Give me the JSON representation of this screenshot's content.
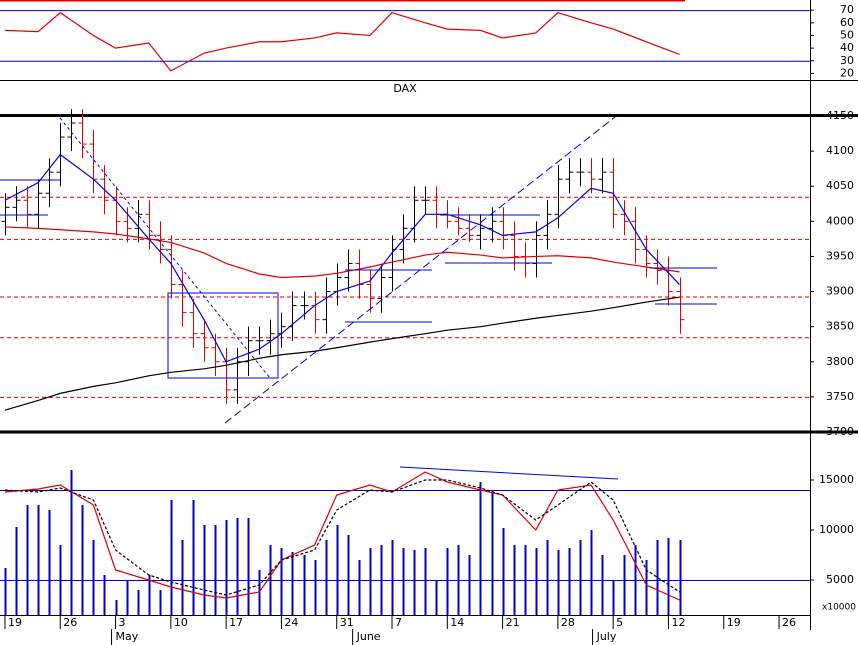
{
  "chart_data": [
    {
      "type": "line",
      "xlim": [
        -0.45,
        72.8
      ],
      "ylim": [
        14,
        78
      ],
      "yticks": [
        20,
        30,
        40,
        50,
        60,
        70
      ],
      "bands": [
        30,
        70
      ],
      "band_color": "#0000cc",
      "series": [
        {
          "color": "#e00000",
          "x": [
            0,
            3,
            5,
            8,
            10,
            13,
            15,
            18,
            20,
            23,
            25,
            28,
            30,
            33,
            35,
            38,
            40,
            43,
            45,
            48,
            50,
            53,
            55,
            58,
            61
          ],
          "values": [
            54,
            53,
            68,
            50,
            40,
            44,
            22,
            36,
            40,
            45,
            45,
            48,
            52,
            50,
            68,
            60,
            55,
            54,
            48,
            52,
            68,
            60,
            55,
            45,
            35
          ]
        }
      ]
    },
    {
      "type": "ohlc",
      "title": "DAX",
      "xlim": [
        -0.45,
        72.8
      ],
      "ylim": [
        3700,
        4150
      ],
      "yticks": [
        3700,
        3750,
        3800,
        3850,
        3900,
        3950,
        4000,
        4050,
        4100,
        4150
      ],
      "hlines": [
        4035,
        3975,
        3893,
        3835,
        3750
      ],
      "hline_color": "#e00000",
      "up_color": "#000000",
      "down_color": "#e00000",
      "open": [
        4000,
        4020,
        4030,
        4010,
        4040,
        4070,
        4120,
        4140,
        4110,
        4060,
        4030,
        4000,
        3990,
        4010,
        3980,
        3960,
        3910,
        3870,
        3840,
        3820,
        3800,
        3760,
        3800,
        3830,
        3830,
        3840,
        3850,
        3880,
        3880,
        3860,
        3900,
        3920,
        3940,
        3910,
        3890,
        3920,
        3960,
        3990,
        4030,
        4030,
        4010,
        4000,
        3990,
        3980,
        3990,
        4000,
        3980,
        3950,
        3940,
        3980,
        4010,
        4060,
        4070,
        4070,
        4060,
        4070,
        4010,
        4000,
        3960,
        3940,
        3930,
        3900
      ],
      "high": [
        4040,
        4050,
        4050,
        4060,
        4090,
        4140,
        4160,
        4160,
        4130,
        4080,
        4050,
        4020,
        4030,
        4030,
        4000,
        3980,
        3930,
        3890,
        3860,
        3840,
        3820,
        3820,
        3850,
        3850,
        3860,
        3870,
        3900,
        3900,
        3900,
        3920,
        3940,
        3960,
        3960,
        3930,
        3940,
        3980,
        4010,
        4050,
        4050,
        4050,
        4030,
        4020,
        4010,
        4010,
        4020,
        4020,
        4000,
        3970,
        4000,
        4030,
        4080,
        4090,
        4090,
        4090,
        4090,
        4090,
        4030,
        4020,
        3980,
        3960,
        3950,
        3920
      ],
      "low": [
        3980,
        4000,
        3990,
        3990,
        4020,
        4050,
        4100,
        4090,
        4040,
        4010,
        3980,
        3970,
        3970,
        3960,
        3940,
        3890,
        3850,
        3820,
        3800,
        3780,
        3740,
        3740,
        3780,
        3810,
        3810,
        3820,
        3830,
        3860,
        3840,
        3840,
        3880,
        3900,
        3890,
        3870,
        3870,
        3900,
        3940,
        3970,
        4010,
        3990,
        3990,
        3980,
        3970,
        3960,
        3970,
        3960,
        3930,
        3920,
        3920,
        3960,
        3990,
        4040,
        4050,
        4040,
        4040,
        3990,
        3980,
        3940,
        3920,
        3910,
        3880,
        3840
      ],
      "close": [
        4020,
        4030,
        4010,
        4040,
        4070,
        4120,
        4140,
        4110,
        4060,
        4030,
        4000,
        3990,
        4010,
        3980,
        3960,
        3910,
        3870,
        3840,
        3820,
        3800,
        3760,
        3800,
        3830,
        3830,
        3840,
        3850,
        3880,
        3880,
        3860,
        3900,
        3920,
        3940,
        3910,
        3890,
        3920,
        3960,
        3990,
        4030,
        4030,
        4010,
        4000,
        3990,
        3980,
        3990,
        4000,
        3980,
        3950,
        3940,
        3980,
        4010,
        4060,
        4070,
        4070,
        4060,
        4070,
        4010,
        4000,
        3960,
        3940,
        3930,
        3900,
        3860
      ],
      "series": [
        {
          "color": "#0000ee",
          "x": [
            0,
            3,
            5,
            8,
            10,
            13,
            15,
            18,
            20,
            23,
            25,
            28,
            30,
            33,
            35,
            38,
            40,
            43,
            45,
            48,
            50,
            53,
            55,
            58,
            61
          ],
          "values": [
            4030,
            4055,
            4095,
            4060,
            4030,
            3975,
            3940,
            3860,
            3800,
            3818,
            3840,
            3880,
            3900,
            3915,
            3955,
            4010,
            4010,
            3995,
            3980,
            3985,
            4005,
            4047,
            4040,
            3960,
            3910
          ]
        },
        {
          "color": "#e00000",
          "x": [
            0,
            3,
            5,
            8,
            10,
            13,
            15,
            18,
            20,
            23,
            25,
            28,
            30,
            33,
            35,
            38,
            40,
            43,
            45,
            48,
            50,
            53,
            55,
            58,
            61
          ],
          "values": [
            3992,
            3990,
            3988,
            3985,
            3982,
            3975,
            3970,
            3955,
            3940,
            3925,
            3920,
            3922,
            3926,
            3935,
            3942,
            3952,
            3956,
            3952,
            3948,
            3950,
            3951,
            3948,
            3942,
            3935,
            3928
          ]
        },
        {
          "color": "#000000",
          "x": [
            0,
            3,
            5,
            8,
            10,
            13,
            15,
            18,
            20,
            23,
            25,
            28,
            30,
            33,
            35,
            38,
            40,
            43,
            45,
            48,
            50,
            53,
            55,
            58,
            61
          ],
          "values": [
            3731,
            3745,
            3755,
            3765,
            3770,
            3780,
            3785,
            3790,
            3795,
            3805,
            3810,
            3815,
            3820,
            3828,
            3833,
            3840,
            3845,
            3850,
            3855,
            3862,
            3866,
            3872,
            3877,
            3885,
            3892
          ]
        }
      ]
    },
    {
      "type": "bar",
      "xlim": [
        -0.45,
        72.8
      ],
      "ylim": [
        1500,
        19800
      ],
      "yticks": [
        5000,
        10000,
        15000
      ],
      "unit_label": "x10000",
      "hlines": [
        14000,
        5000
      ],
      "hline_color": "#0000cc",
      "color": "#0000cc",
      "values": [
        6200,
        10300,
        12500,
        12500,
        12000,
        8500,
        16000,
        12500,
        9000,
        5500,
        3000,
        5000,
        4000,
        5500,
        4000,
        13000,
        9000,
        13000,
        10500,
        10500,
        11000,
        11200,
        11200,
        6000,
        8500,
        8200,
        7800,
        7500,
        7000,
        9000,
        10500,
        9500,
        7000,
        8200,
        8500,
        9000,
        8200,
        8000,
        8200,
        5000,
        8200,
        8500,
        7500,
        14800,
        14000,
        10200,
        8500,
        8500,
        8200,
        9000,
        8000,
        8200,
        9000,
        10000,
        7500,
        5000,
        7500,
        8500,
        7000,
        9000,
        9200,
        9000
      ],
      "series": [
        {
          "color": "#e00000",
          "x": [
            0,
            3,
            5,
            8,
            10,
            13,
            15,
            18,
            20,
            23,
            25,
            28,
            30,
            33,
            35,
            38,
            40,
            43,
            45,
            48,
            50,
            53,
            55,
            58,
            61
          ],
          "values": [
            13800,
            14100,
            14500,
            12500,
            6000,
            5000,
            4300,
            3500,
            3200,
            3800,
            7000,
            8500,
            13500,
            14500,
            13800,
            15800,
            14800,
            14000,
            13500,
            10000,
            14000,
            14500,
            11000,
            4500,
            3000
          ]
        },
        {
          "color": "#000000",
          "dashed": true,
          "x": [
            0,
            3,
            5,
            8,
            10,
            13,
            15,
            18,
            20,
            23,
            25,
            28,
            30,
            33,
            35,
            38,
            40,
            43,
            45,
            48,
            50,
            53,
            55,
            58,
            61
          ],
          "values": [
            14000,
            13800,
            14200,
            13000,
            8000,
            5500,
            4800,
            4000,
            3500,
            4500,
            7000,
            8000,
            12000,
            14000,
            13800,
            15000,
            15000,
            14200,
            13500,
            11000,
            12500,
            14800,
            13000,
            6000,
            3800
          ]
        }
      ],
      "xticks": [
        {
          "value": 0,
          "label": "19"
        },
        {
          "value": 5,
          "label": "26"
        },
        {
          "value": 10,
          "label": "3"
        },
        {
          "value": 15,
          "label": "10"
        },
        {
          "value": 20,
          "label": "17"
        },
        {
          "value": 25,
          "label": "24"
        },
        {
          "value": 30,
          "label": "31"
        },
        {
          "value": 35,
          "label": "7"
        },
        {
          "value": 40,
          "label": "14"
        },
        {
          "value": 45,
          "label": "21"
        },
        {
          "value": 50,
          "label": "28"
        },
        {
          "value": 55,
          "label": "5"
        },
        {
          "value": 60,
          "label": "12"
        },
        {
          "value": 65,
          "label": "19"
        },
        {
          "value": 70,
          "label": "26"
        }
      ],
      "month_labels": [
        {
          "value": 10,
          "label": "May"
        },
        {
          "value": 31.8,
          "label": "June"
        },
        {
          "value": 53.5,
          "label": "July"
        }
      ]
    }
  ]
}
